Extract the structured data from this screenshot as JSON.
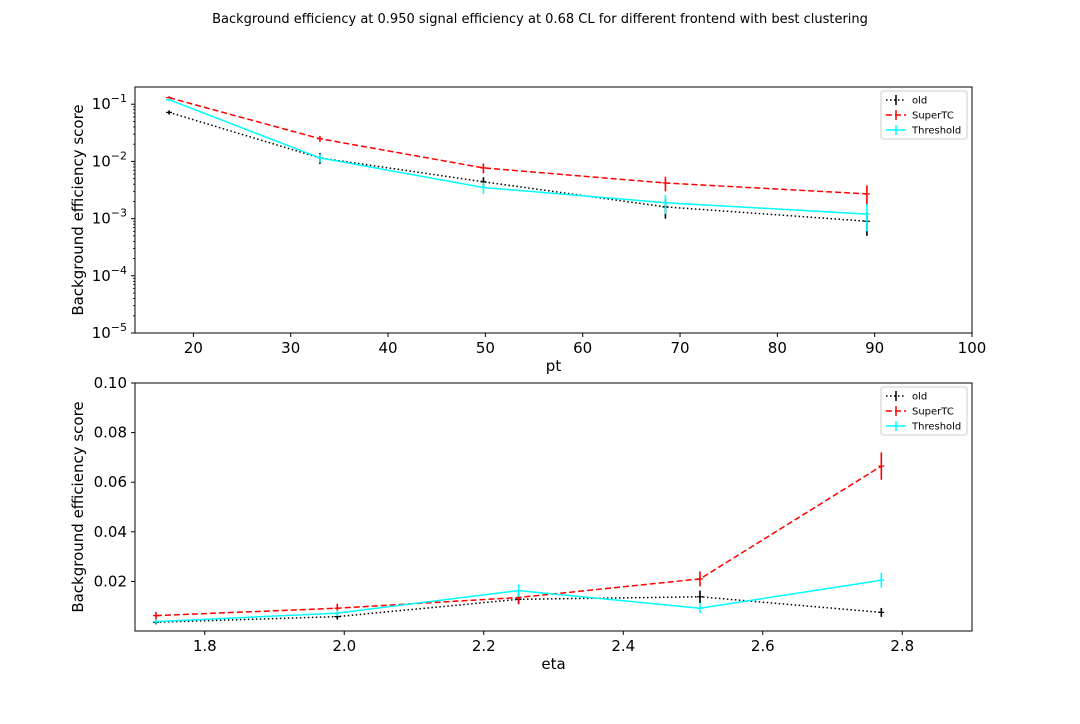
{
  "figure": {
    "suptitle": "Background efficiency at 0.950 signal efficiency at 0.68 CL for different frontend with best clustering"
  },
  "chart_data": [
    {
      "type": "line",
      "title": "",
      "xlabel": "pt",
      "ylabel": "Background efficiency score",
      "xlim": [
        14,
        100
      ],
      "ylim": [
        1e-05,
        0.2
      ],
      "yscale": "log",
      "xticks": [
        20,
        30,
        40,
        50,
        60,
        70,
        80,
        90,
        100
      ],
      "yticks": [
        1e-05,
        0.0001,
        0.001,
        0.01,
        0.1
      ],
      "ytick_labels": [
        {
          "base": "10",
          "exp": "−5"
        },
        {
          "base": "10",
          "exp": "−4"
        },
        {
          "base": "10",
          "exp": "−3"
        },
        {
          "base": "10",
          "exp": "−2"
        },
        {
          "base": "10",
          "exp": "−1"
        }
      ],
      "grid": false,
      "legend_position": "top-right",
      "series": [
        {
          "name": "old",
          "color": "#000000",
          "linestyle": "dotted",
          "x": [
            17.5,
            33,
            49.8,
            68.5,
            89.2
          ],
          "y": [
            0.072,
            0.0115,
            0.0044,
            0.0016,
            0.0009
          ],
          "yerr": [
            0.006,
            0.0025,
            0.0009,
            0.0006,
            0.0004
          ]
        },
        {
          "name": "SuperTC",
          "color": "#ff0000",
          "linestyle": "dashed",
          "x": [
            17.5,
            33,
            49.8,
            68.5,
            89.2
          ],
          "y": [
            0.13,
            0.025,
            0.0077,
            0.0042,
            0.0027
          ],
          "yerr": [
            0.008,
            0.003,
            0.0015,
            0.0012,
            0.0011
          ]
        },
        {
          "name": "Threshold",
          "color": "#00ffff",
          "linestyle": "solid",
          "x": [
            17.5,
            33,
            49.8,
            68.5,
            89.2
          ],
          "y": [
            0.12,
            0.0115,
            0.0035,
            0.0019,
            0.0012
          ],
          "yerr": [
            0.008,
            0.002,
            0.0008,
            0.0007,
            0.0006
          ]
        }
      ]
    },
    {
      "type": "line",
      "title": "",
      "xlabel": "eta",
      "ylabel": "Background efficiency score",
      "xlim": [
        1.7,
        2.9
      ],
      "ylim": [
        0,
        0.1
      ],
      "yscale": "linear",
      "xticks": [
        1.8,
        2.0,
        2.2,
        2.4,
        2.6,
        2.8
      ],
      "xtick_labels": [
        "1.8",
        "2.0",
        "2.2",
        "2.4",
        "2.6",
        "2.8"
      ],
      "yticks": [
        0.02,
        0.04,
        0.06,
        0.08,
        0.1
      ],
      "ytick_labels": [
        "0.02",
        "0.04",
        "0.06",
        "0.08",
        "0.10"
      ],
      "grid": false,
      "legend_position": "top-right",
      "series": [
        {
          "name": "old",
          "color": "#000000",
          "linestyle": "dotted",
          "x": [
            1.73,
            1.99,
            2.25,
            2.51,
            2.77
          ],
          "y": [
            0.0035,
            0.0058,
            0.0128,
            0.0138,
            0.0075
          ],
          "yerr": [
            0.0008,
            0.0012,
            0.002,
            0.0025,
            0.0018
          ]
        },
        {
          "name": "SuperTC",
          "color": "#ff0000",
          "linestyle": "dashed",
          "x": [
            1.73,
            1.99,
            2.25,
            2.51,
            2.77
          ],
          "y": [
            0.0062,
            0.0092,
            0.0135,
            0.021,
            0.0665
          ],
          "yerr": [
            0.0015,
            0.0018,
            0.0025,
            0.003,
            0.0055
          ]
        },
        {
          "name": "Threshold",
          "color": "#00ffff",
          "linestyle": "solid",
          "x": [
            1.73,
            1.99,
            2.25,
            2.51,
            2.77
          ],
          "y": [
            0.0038,
            0.0072,
            0.0163,
            0.0092,
            0.0205
          ],
          "yerr": [
            0.0008,
            0.0012,
            0.0025,
            0.002,
            0.003
          ]
        }
      ]
    }
  ]
}
